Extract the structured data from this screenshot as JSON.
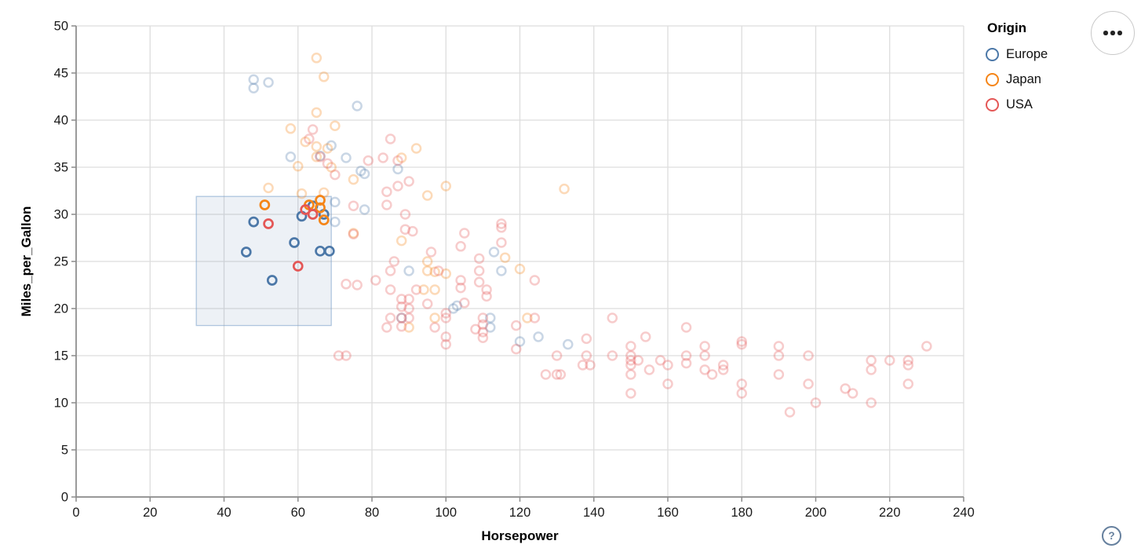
{
  "legend": {
    "title": "Origin",
    "items": [
      {
        "label": "Europe",
        "color": "#4c78a8"
      },
      {
        "label": "Japan",
        "color": "#f58518"
      },
      {
        "label": "USA",
        "color": "#e45756"
      }
    ]
  },
  "axes": {
    "x": {
      "title": "Horsepower",
      "domain": [
        0,
        240
      ],
      "ticks": [
        0,
        20,
        40,
        60,
        80,
        100,
        120,
        140,
        160,
        180,
        200,
        220,
        240
      ]
    },
    "y": {
      "title": "Miles_per_Gallon",
      "domain": [
        0,
        50
      ],
      "ticks": [
        0,
        5,
        10,
        15,
        20,
        25,
        30,
        35,
        40,
        45,
        50
      ]
    }
  },
  "brush": {
    "hp_min": 32.5,
    "hp_max": 69,
    "mpg_min": 18.2,
    "mpg_max": 31.9,
    "fill": "#4c78a8",
    "fill_opacity": 0.1,
    "stroke": "#7fa3cc",
    "stroke_opacity": 0.6
  },
  "controls": {
    "menu_icon": "ellipsis-icon",
    "help_label": "?"
  },
  "style": {
    "grid_color": "#dddddd",
    "domain_color": "#8b8b8b",
    "label_color": "#1a1a1a",
    "unselected_opacity": 0.3,
    "point_radius": 5.5,
    "point_stroke_width": 2.5
  },
  "chart_data": {
    "type": "scatter",
    "title": "",
    "xlabel": "Horsepower",
    "ylabel": "Miles_per_Gallon",
    "xlim": [
      0,
      240
    ],
    "ylim": [
      0,
      50
    ],
    "grid": true,
    "legend_position": "top-right",
    "color_field": "Origin",
    "note": "points as [Horsepower, Miles_per_Gallon]; 'selected' points lie inside the brush rectangle and render fully opaque",
    "series": [
      {
        "name": "Europe",
        "color": "#4c78a8",
        "selected": [
          [
            46,
            26
          ],
          [
            48,
            29.2
          ],
          [
            53,
            23
          ],
          [
            59,
            27
          ],
          [
            61,
            29.8
          ],
          [
            64,
            30.9
          ],
          [
            67,
            30
          ],
          [
            66,
            26.1
          ],
          [
            68.5,
            26.1
          ]
        ],
        "unselected": [
          [
            48,
            43.4
          ],
          [
            48,
            44.3
          ],
          [
            52,
            44
          ],
          [
            76,
            41.5
          ],
          [
            69,
            37.3
          ],
          [
            66,
            36.2
          ],
          [
            58,
            36.1
          ],
          [
            73,
            36
          ],
          [
            77,
            34.6
          ],
          [
            87,
            34.8
          ],
          [
            78,
            34.3
          ],
          [
            70,
            31.3
          ],
          [
            70,
            29.2
          ],
          [
            78,
            30.5
          ],
          [
            90,
            24
          ],
          [
            113,
            26
          ],
          [
            115,
            24
          ],
          [
            102,
            20
          ],
          [
            103,
            20.3
          ],
          [
            88,
            19
          ],
          [
            112,
            19
          ],
          [
            112,
            18
          ],
          [
            120,
            16.5
          ],
          [
            125,
            17
          ],
          [
            133,
            16.2
          ]
        ]
      },
      {
        "name": "Japan",
        "color": "#f58518",
        "selected": [
          [
            51,
            31
          ],
          [
            63,
            31
          ],
          [
            66,
            31.5
          ],
          [
            66,
            30.7
          ],
          [
            67,
            29.4
          ]
        ],
        "unselected": [
          [
            65,
            46.6
          ],
          [
            67,
            44.6
          ],
          [
            70,
            39.4
          ],
          [
            65,
            40.8
          ],
          [
            58,
            39.1
          ],
          [
            62,
            37.7
          ],
          [
            65,
            37.2
          ],
          [
            68,
            37
          ],
          [
            65,
            36.1
          ],
          [
            60,
            35.1
          ],
          [
            69,
            35
          ],
          [
            75,
            33.7
          ],
          [
            52,
            32.8
          ],
          [
            67,
            32.3
          ],
          [
            61,
            32.2
          ],
          [
            92,
            37
          ],
          [
            88,
            36
          ],
          [
            100,
            33
          ],
          [
            95,
            32
          ],
          [
            132,
            32.7
          ],
          [
            75,
            28
          ],
          [
            88,
            27.2
          ],
          [
            116,
            25.4
          ],
          [
            120,
            24.2
          ],
          [
            95,
            25
          ],
          [
            95,
            24
          ],
          [
            94,
            22
          ],
          [
            97,
            23.9
          ],
          [
            100,
            23.7
          ],
          [
            97,
            22
          ],
          [
            122,
            19
          ],
          [
            97,
            19
          ],
          [
            90,
            18
          ]
        ]
      },
      {
        "name": "USA",
        "color": "#e45756",
        "selected": [
          [
            52,
            29
          ],
          [
            60,
            24.5
          ],
          [
            62,
            30.5
          ],
          [
            64,
            30
          ]
        ],
        "unselected": [
          [
            64,
            39
          ],
          [
            63,
            38
          ],
          [
            85,
            38
          ],
          [
            83,
            36
          ],
          [
            87,
            35.7
          ],
          [
            79,
            35.7
          ],
          [
            70,
            34.2
          ],
          [
            66,
            36.1
          ],
          [
            68,
            35.4
          ],
          [
            90,
            33.5
          ],
          [
            87,
            33
          ],
          [
            84,
            32.4
          ],
          [
            84,
            31
          ],
          [
            75,
            30.9
          ],
          [
            89,
            30
          ],
          [
            89,
            28.4
          ],
          [
            91,
            28.2
          ],
          [
            105,
            28
          ],
          [
            115,
            29
          ],
          [
            115,
            28.6
          ],
          [
            115,
            27
          ],
          [
            96,
            26
          ],
          [
            104,
            26.6
          ],
          [
            75,
            27.9
          ],
          [
            86,
            25
          ],
          [
            85,
            24
          ],
          [
            98,
            24
          ],
          [
            104,
            23
          ],
          [
            109,
            25.3
          ],
          [
            109,
            24
          ],
          [
            109,
            22.8
          ],
          [
            111,
            22
          ],
          [
            111,
            21.3
          ],
          [
            105,
            20.6
          ],
          [
            104,
            22.2
          ],
          [
            110,
            19
          ],
          [
            110,
            18.3
          ],
          [
            110,
            17.5
          ],
          [
            110,
            16.9
          ],
          [
            124,
            23
          ],
          [
            124,
            19
          ],
          [
            119,
            18.2
          ],
          [
            119,
            15.7
          ],
          [
            76,
            22.5
          ],
          [
            73,
            22.6
          ],
          [
            81,
            23
          ],
          [
            84,
            18
          ],
          [
            85,
            19
          ],
          [
            88,
            21
          ],
          [
            88,
            20.2
          ],
          [
            88,
            19
          ],
          [
            88,
            18.1
          ],
          [
            90,
            21
          ],
          [
            90,
            20
          ],
          [
            90,
            19
          ],
          [
            92,
            22
          ],
          [
            85,
            22
          ],
          [
            97,
            18
          ],
          [
            95,
            20.5
          ],
          [
            100,
            19
          ],
          [
            100,
            19.5
          ],
          [
            100,
            17
          ],
          [
            100,
            16.2
          ],
          [
            108,
            17.8
          ],
          [
            71,
            15
          ],
          [
            73,
            15
          ],
          [
            127,
            13
          ],
          [
            130,
            15
          ],
          [
            130,
            13
          ],
          [
            131,
            13
          ],
          [
            137,
            14
          ],
          [
            138,
            15
          ],
          [
            138,
            16.8
          ],
          [
            139,
            14
          ],
          [
            145,
            19
          ],
          [
            145,
            15
          ],
          [
            150,
            16
          ],
          [
            150,
            15
          ],
          [
            150,
            14.5
          ],
          [
            150,
            14
          ],
          [
            150,
            13
          ],
          [
            150,
            11
          ],
          [
            152,
            14.5
          ],
          [
            154,
            17
          ],
          [
            155,
            13.5
          ],
          [
            158,
            14.5
          ],
          [
            160,
            14
          ],
          [
            160,
            12
          ],
          [
            165,
            15
          ],
          [
            165,
            14.2
          ],
          [
            165,
            18
          ],
          [
            170,
            16
          ],
          [
            170,
            15
          ],
          [
            170,
            13.5
          ],
          [
            172,
            13
          ],
          [
            175,
            14
          ],
          [
            175,
            13.5
          ],
          [
            180,
            16.5
          ],
          [
            180,
            16.2
          ],
          [
            180,
            12
          ],
          [
            180,
            11
          ],
          [
            190,
            16
          ],
          [
            190,
            15
          ],
          [
            190,
            13
          ],
          [
            193,
            9
          ],
          [
            198,
            15
          ],
          [
            198,
            12
          ],
          [
            200,
            10
          ],
          [
            208,
            11.5
          ],
          [
            210,
            11
          ],
          [
            215,
            14.5
          ],
          [
            215,
            13.5
          ],
          [
            215,
            10
          ],
          [
            220,
            14.5
          ],
          [
            225,
            14.5
          ],
          [
            225,
            14
          ],
          [
            225,
            12
          ],
          [
            230,
            16
          ]
        ]
      }
    ]
  }
}
